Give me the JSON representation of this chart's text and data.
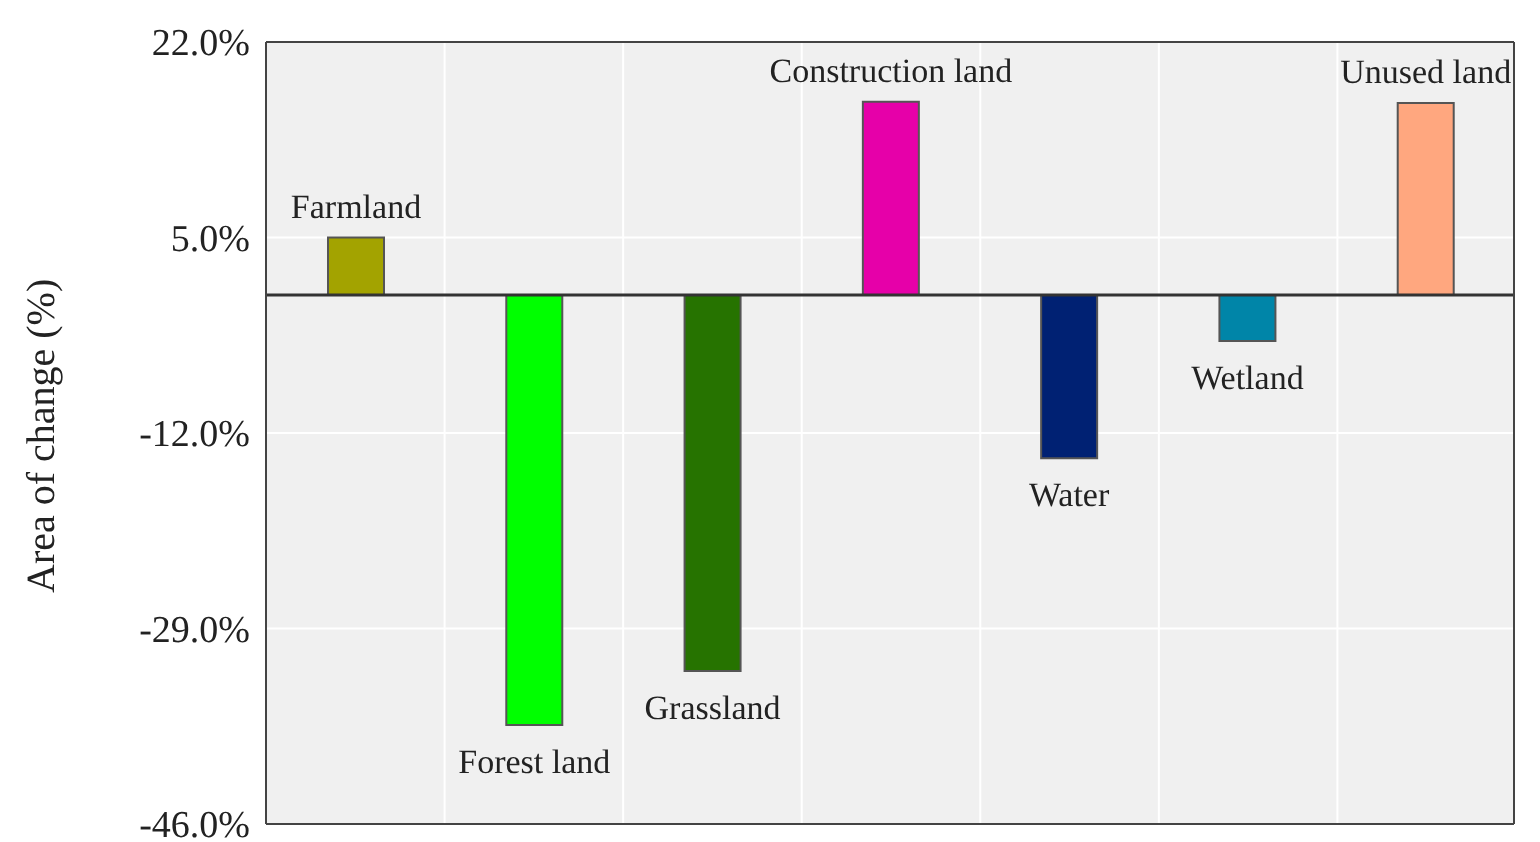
{
  "chart_data": {
    "type": "bar",
    "ylabel": "Area of change (%)",
    "categories": [
      "Farmland",
      "Forest land",
      "Grassland",
      "Construction land",
      "Water",
      "Wetland",
      "Unused land"
    ],
    "values": [
      5.0,
      -37.4,
      -32.7,
      16.8,
      -14.2,
      -4.0,
      16.7
    ],
    "colors": [
      "#a3a300",
      "#00ff00",
      "#267300",
      "#e600a9",
      "#002173",
      "#0085a8",
      "#ffa77f"
    ],
    "ylim": [
      -46,
      22
    ],
    "yticks": [
      {
        "value": 22,
        "label": "22.0%"
      },
      {
        "value": 5,
        "label": "5.0%"
      },
      {
        "value": -12,
        "label": "-12.0%"
      },
      {
        "value": -29,
        "label": "-29.0%"
      },
      {
        "value": -46,
        "label": "-46.0%"
      }
    ],
    "grid": true,
    "ref_lines": [
      {
        "axis": "y",
        "value": 0,
        "color": "#333333"
      }
    ]
  }
}
